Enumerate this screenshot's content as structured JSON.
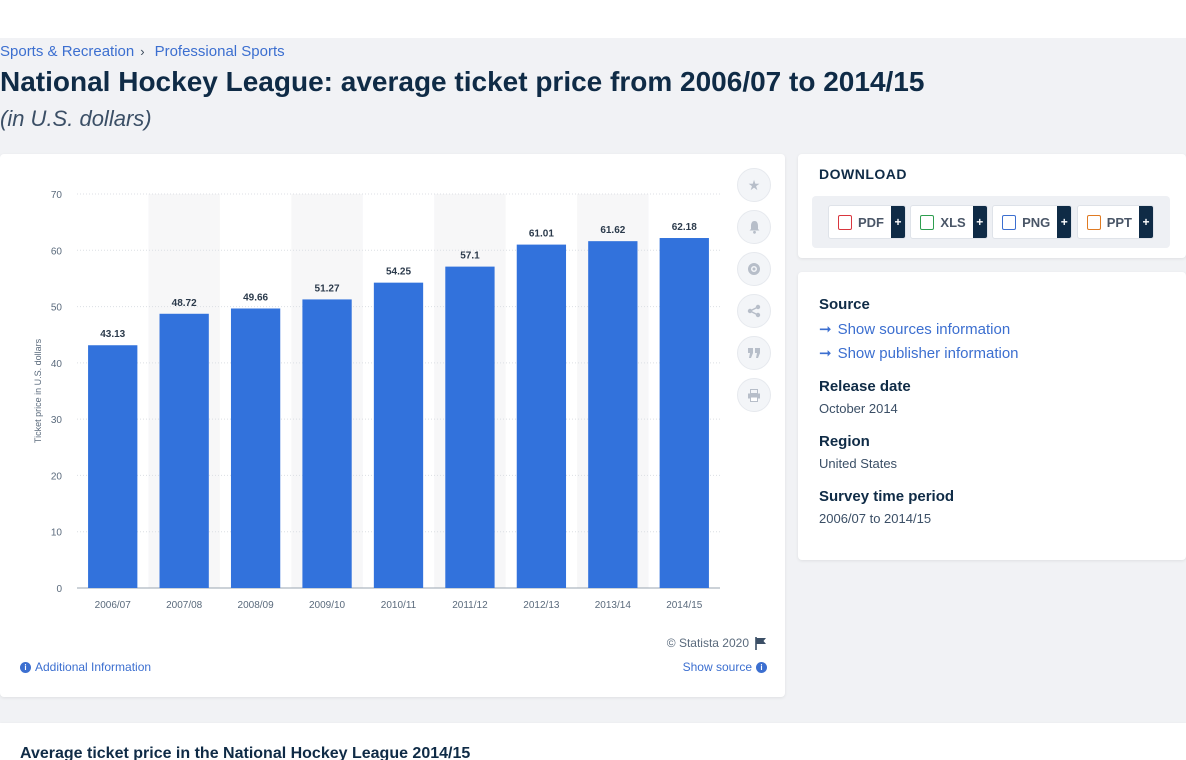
{
  "breadcrumb": {
    "items": [
      "Sports & Recreation",
      "Professional Sports"
    ],
    "separator": "›"
  },
  "title": "National Hockey League: average ticket price from 2006/07 to 2014/15",
  "subtitle": "(in U.S. dollars)",
  "tools": [
    "star-icon",
    "bell-icon",
    "gear-icon",
    "share-icon",
    "quote-icon",
    "print-icon"
  ],
  "footer": {
    "copyright": "© Statista 2020",
    "additional_info": "Additional Information",
    "show_source": "Show source"
  },
  "download": {
    "title": "DOWNLOAD",
    "buttons": [
      {
        "label": "PDF",
        "plus": "+",
        "color": "#d9363e"
      },
      {
        "label": "XLS",
        "plus": "+",
        "color": "#2e9e4f"
      },
      {
        "label": "PNG",
        "plus": "+",
        "color": "#3c6fd0"
      },
      {
        "label": "PPT",
        "plus": "+",
        "color": "#e07b23"
      }
    ]
  },
  "info": {
    "source_heading": "Source",
    "show_sources": "Show sources information",
    "show_publisher": "Show publisher information",
    "release_heading": "Release date",
    "release_value": "October 2014",
    "region_heading": "Region",
    "region_value": "United States",
    "period_heading": "Survey time period",
    "period_value": "2006/07 to 2014/15"
  },
  "bottom": {
    "title": "Average ticket price in the National Hockey League 2014/15"
  },
  "colors": {
    "bar": "#3272dc",
    "link": "#3c6fd0",
    "heading": "#0f2b46"
  },
  "chart_data": {
    "type": "bar",
    "categories": [
      "2006/07",
      "2007/08",
      "2008/09",
      "2009/10",
      "2010/11",
      "2011/12",
      "2012/13",
      "2013/14",
      "2014/15"
    ],
    "values": [
      43.13,
      48.72,
      49.66,
      51.27,
      54.25,
      57.1,
      61.01,
      61.62,
      62.18
    ],
    "value_labels": [
      "43.13",
      "48.72",
      "49.66",
      "51.27",
      "54.25",
      "57.1",
      "61.01",
      "61.62",
      "62.18"
    ],
    "ylabel": "Ticket price in U.S. dollars",
    "ylim": [
      0,
      70
    ],
    "yticks": [
      0,
      10,
      20,
      30,
      40,
      50,
      60,
      70
    ],
    "grid": true
  }
}
